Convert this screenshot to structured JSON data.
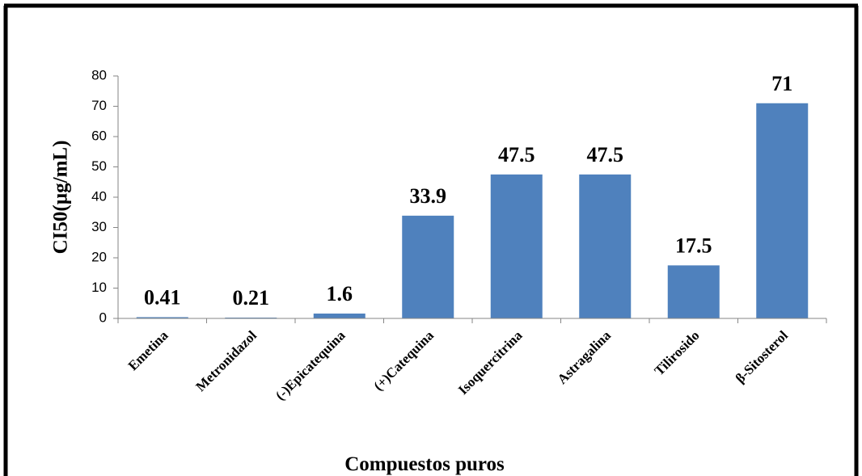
{
  "chart_data": {
    "type": "bar",
    "categories": [
      "Emetina",
      "Metronidazol",
      "(-)Epicatequina",
      "(+)Catequina",
      "Isoquercitrina",
      "Astragalina",
      "Tilirosido",
      "β-Sitosterol"
    ],
    "values": [
      0.41,
      0.21,
      1.6,
      33.9,
      47.5,
      47.5,
      17.5,
      71
    ],
    "data_labels": [
      "0.41",
      "0.21",
      "1.6",
      "33.9",
      "47.5",
      "47.5",
      "17.5",
      "71"
    ],
    "xlabel": "Compuestos puros",
    "ylabel": "CI50(µg/mL)",
    "ylim": [
      0,
      80
    ],
    "yticks": [
      "0",
      "10",
      "20",
      "30",
      "40",
      "50",
      "60",
      "70",
      "80"
    ],
    "grid": false,
    "legend": "none",
    "bar_color": "#4F81BD"
  }
}
